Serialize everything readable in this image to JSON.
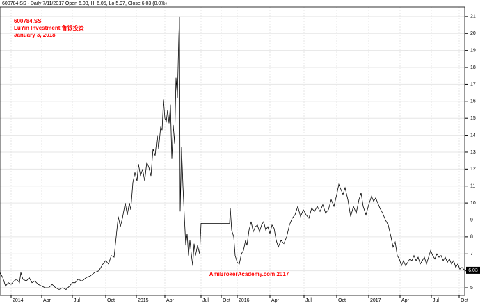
{
  "chart_data": {
    "type": "line",
    "header": "600784.SS - Daily 7/11/2017 Open 6.03, Hi 6.05, Lo 5.97, Close 6.03 (0.0%)",
    "annotations": [
      "600784.SS",
      "LuYin Investment 鲁银投资",
      "January 3, 2018"
    ],
    "watermark": "AmiBrokerAcademy.com  2017",
    "last_value_label": "6.03",
    "grid": true,
    "xlim": [
      0,
      668
    ],
    "ylim": [
      4.55,
      21.57
    ],
    "yticks": [
      5,
      6,
      7,
      8,
      9,
      10,
      11,
      12,
      13,
      14,
      15,
      16,
      17,
      18,
      19,
      20,
      21
    ],
    "xticks": [
      {
        "value": 16,
        "label": "2014"
      },
      {
        "value": 60,
        "label": "Apr"
      },
      {
        "value": 104,
        "label": "Jul"
      },
      {
        "value": 152,
        "label": "Oct"
      },
      {
        "value": 196,
        "label": "2015"
      },
      {
        "value": 237,
        "label": "Apr"
      },
      {
        "value": 289,
        "label": "Jul"
      },
      {
        "value": 318,
        "label": "Oct"
      },
      {
        "value": 341,
        "label": "2016"
      },
      {
        "value": 388,
        "label": "Apr"
      },
      {
        "value": 437,
        "label": "Jul"
      },
      {
        "value": 484,
        "label": "Oct"
      },
      {
        "value": 530,
        "label": "2017"
      },
      {
        "value": 575,
        "label": "Apr"
      },
      {
        "value": 620,
        "label": "Jul"
      },
      {
        "value": 660,
        "label": "Oct"
      }
    ],
    "series": [
      {
        "color": "#000000",
        "x": [
          0,
          4,
          8,
          12,
          16,
          20,
          24,
          28,
          30,
          33,
          38,
          42,
          46,
          50,
          55,
          60,
          65,
          70,
          75,
          80,
          85,
          90,
          95,
          100,
          104,
          108,
          112,
          118,
          124,
          130,
          136,
          142,
          148,
          152,
          156,
          160,
          164,
          167,
          170,
          173,
          176,
          180,
          183,
          186,
          188,
          191,
          194,
          197,
          199,
          202,
          205,
          208,
          211,
          214,
          217,
          220,
          223,
          226,
          228,
          231,
          233,
          235,
          237,
          239,
          241,
          243,
          245,
          247,
          249,
          251,
          253,
          255,
          257,
          258,
          259,
          261,
          263,
          265,
          267,
          269,
          271,
          273,
          275,
          277,
          279,
          281,
          284,
          287,
          289,
          330,
          331,
          333,
          336,
          338,
          341,
          344,
          347,
          350,
          353,
          355,
          358,
          361,
          364,
          367,
          370,
          373,
          376,
          379,
          382,
          385,
          388,
          391,
          394,
          397,
          400,
          404,
          408,
          412,
          416,
          420,
          424,
          428,
          432,
          436,
          440,
          444,
          448,
          452,
          456,
          460,
          464,
          468,
          472,
          476,
          480,
          484,
          487,
          490,
          493,
          496,
          500,
          504,
          508,
          512,
          516,
          519,
          522,
          526,
          530,
          534,
          537,
          540,
          543,
          546,
          550,
          554,
          558,
          562,
          565,
          568,
          571,
          574,
          577,
          580,
          583,
          586,
          589,
          592,
          595,
          598,
          601,
          604,
          607,
          610,
          613,
          616,
          619,
          622,
          625,
          628,
          631,
          634,
          637,
          640,
          643,
          646,
          649,
          652,
          655,
          658,
          661,
          664,
          668
        ],
        "values": [
          5.9,
          5.6,
          5.1,
          5.3,
          5.2,
          5.4,
          5.5,
          5.3,
          5.9,
          5.5,
          5.4,
          5.6,
          5.3,
          5.4,
          5.2,
          5.1,
          5.0,
          5.0,
          5.2,
          5.0,
          4.9,
          5.0,
          4.9,
          5.1,
          5.3,
          5.3,
          5.5,
          5.4,
          5.6,
          5.7,
          5.9,
          6.0,
          6.4,
          6.6,
          6.4,
          6.9,
          6.8,
          8.0,
          9.2,
          8.6,
          9.1,
          10.0,
          9.3,
          10.0,
          9.6,
          11.2,
          11.8,
          11.3,
          12.3,
          11.6,
          12.0,
          11.3,
          12.4,
          12.1,
          11.6,
          13.2,
          12.8,
          14.0,
          13.2,
          14.5,
          14.3,
          16.1,
          15.0,
          14.8,
          15.5,
          14.7,
          15.8,
          12.6,
          14.6,
          13.5,
          17.4,
          16.2,
          19.8,
          21.0,
          9.5,
          13.3,
          11.0,
          9.2,
          7.5,
          8.2,
          6.9,
          7.8,
          7.0,
          6.3,
          7.6,
          6.9,
          7.5,
          7.0,
          8.8,
          8.8,
          9.7,
          8.4,
          8.0,
          6.9,
          6.5,
          6.4,
          7.0,
          7.2,
          7.8,
          7.5,
          8.4,
          8.9,
          8.3,
          8.6,
          8.7,
          8.3,
          8.7,
          8.9,
          8.4,
          8.6,
          8.2,
          8.7,
          8.5,
          7.8,
          7.4,
          7.8,
          7.6,
          8.0,
          8.7,
          9.1,
          9.3,
          9.8,
          9.2,
          9.6,
          9.3,
          9.1,
          9.7,
          9.5,
          9.8,
          9.5,
          9.9,
          9.4,
          9.6,
          10.2,
          9.8,
          10.5,
          11.1,
          10.8,
          10.5,
          10.9,
          10.2,
          9.2,
          9.8,
          9.4,
          10.2,
          10.6,
          9.8,
          9.3,
          9.9,
          10.4,
          10.1,
          10.3,
          10.0,
          9.7,
          9.4,
          9.0,
          8.7,
          8.0,
          7.4,
          7.7,
          6.9,
          6.7,
          6.3,
          6.6,
          6.3,
          6.5,
          6.7,
          6.6,
          6.9,
          6.6,
          6.8,
          6.4,
          6.6,
          6.8,
          6.4,
          6.8,
          7.2,
          6.9,
          6.7,
          7.0,
          6.8,
          6.9,
          6.6,
          6.8,
          6.5,
          6.7,
          6.4,
          6.6,
          6.2,
          6.4,
          6.1,
          6.2,
          6.03
        ]
      }
    ]
  }
}
